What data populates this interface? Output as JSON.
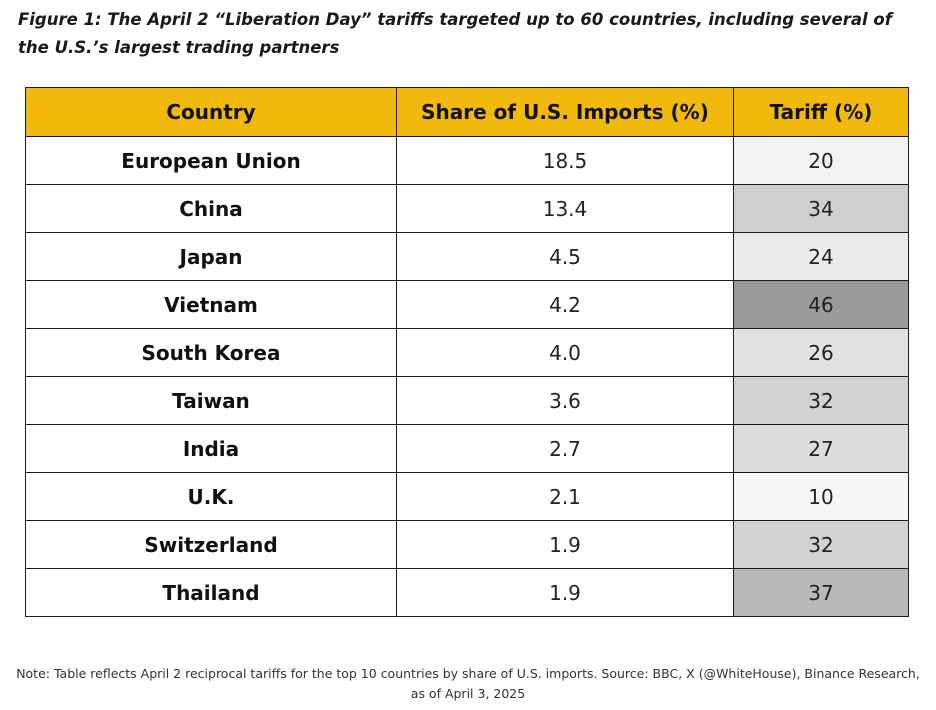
{
  "figure": {
    "title": "Figure 1: The April 2 “Liberation Day” tariffs targeted up to 60 countries, including several of the U.S.’s largest trading partners"
  },
  "table": {
    "header_color": "#f0b90b",
    "columns": [
      "Country",
      "Share of U.S. Imports (%)",
      "Tariff (%)"
    ],
    "rows": [
      {
        "country": "European Union",
        "share": "18.5",
        "tariff": "20",
        "shade": "#f2f2f2"
      },
      {
        "country": "China",
        "share": "13.4",
        "tariff": "34",
        "shade": "#cfcfcf"
      },
      {
        "country": "Japan",
        "share": "4.5",
        "tariff": "24",
        "shade": "#ebebeb"
      },
      {
        "country": "Vietnam",
        "share": "4.2",
        "tariff": "46",
        "shade": "#9a9a9a"
      },
      {
        "country": "South Korea",
        "share": "4.0",
        "tariff": "26",
        "shade": "#e2e2e2"
      },
      {
        "country": "Taiwan",
        "share": "3.6",
        "tariff": "32",
        "shade": "#d2d2d2"
      },
      {
        "country": "India",
        "share": "2.7",
        "tariff": "27",
        "shade": "#dcdcdc"
      },
      {
        "country": "U.K.",
        "share": "2.1",
        "tariff": "10",
        "shade": "#f7f7f7"
      },
      {
        "country": "Switzerland",
        "share": "1.9",
        "tariff": "32",
        "shade": "#d2d2d2"
      },
      {
        "country": "Thailand",
        "share": "1.9",
        "tariff": "37",
        "shade": "#b8b8b8"
      }
    ]
  },
  "note": "Note: Table reflects April 2 reciprocal tariffs for the top 10 countries by share of U.S. imports. Source: BBC, X (@WhiteHouse), Binance Research, as of April 3, 2025"
}
